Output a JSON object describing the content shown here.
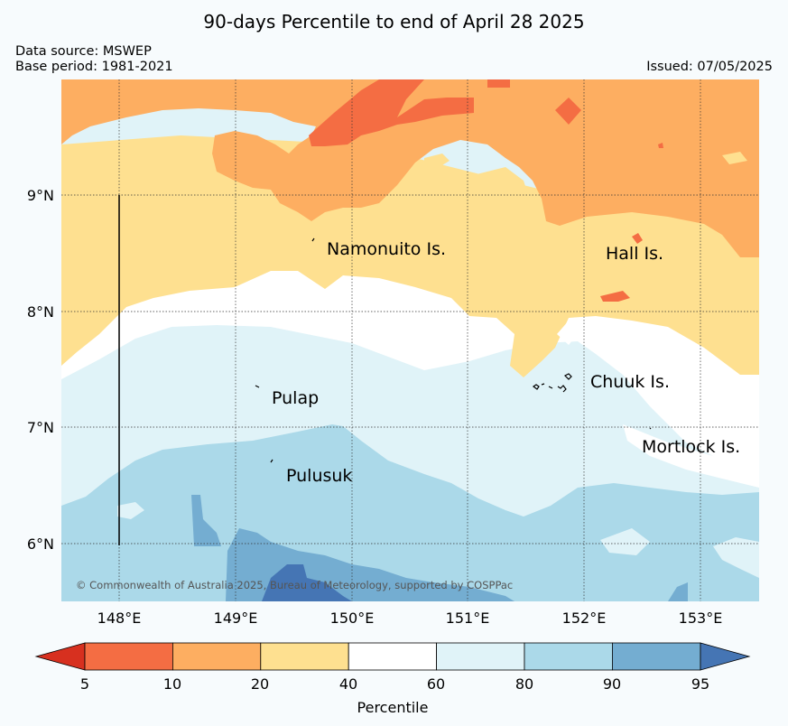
{
  "title": "90-days Percentile to end of April 28 2025",
  "data_source": "Data source: MSWEP",
  "base_period": "Base period: 1981-2021",
  "issued": "Issued: 07/05/2025",
  "copyright": "© Commonwealth of Australia 2025, Bureau of Meteorology, supported by COSPPac",
  "axes": {
    "x_ticks": [
      "148°E",
      "149°E",
      "150°E",
      "151°E",
      "152°E",
      "153°E"
    ],
    "y_ticks": [
      "9°N",
      "8°N",
      "7°N",
      "6°N"
    ]
  },
  "places": [
    {
      "name": "Namonuito Is."
    },
    {
      "name": "Hall Is."
    },
    {
      "name": "Pulap"
    },
    {
      "name": "Chuuk Is."
    },
    {
      "name": "Mortlock Is."
    },
    {
      "name": "Pulusuk"
    }
  ],
  "colorbar": {
    "label": "Percentile",
    "ticks": [
      "5",
      "10",
      "20",
      "40",
      "60",
      "80",
      "90",
      "95"
    ],
    "colors": {
      "below5": "#d7301f",
      "p5_10": "#f46d43",
      "p10_20": "#fdae61",
      "p20_40": "#fee090",
      "p40_60": "#ffffff",
      "p60_80": "#e0f3f8",
      "p80_90": "#abd9e9",
      "p90_95": "#74add1",
      "above95": "#4575b4"
    }
  }
}
